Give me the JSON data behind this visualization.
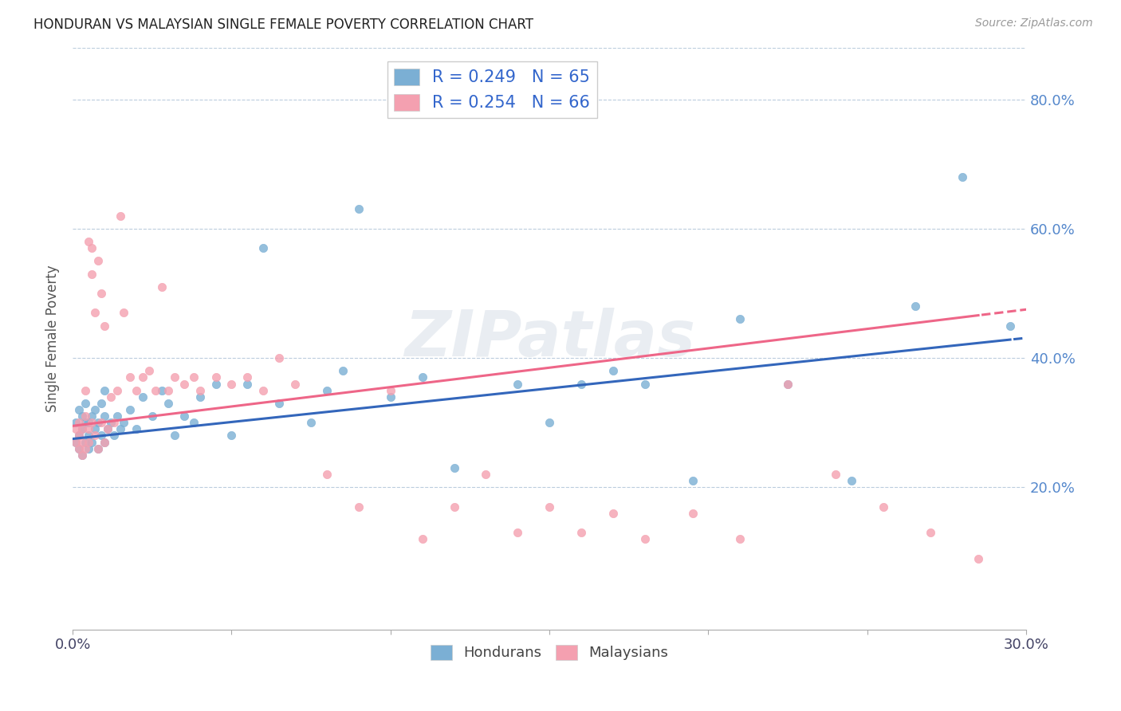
{
  "title": "HONDURAN VS MALAYSIAN SINGLE FEMALE POVERTY CORRELATION CHART",
  "source": "Source: ZipAtlas.com",
  "ylabel": "Single Female Poverty",
  "blue_color": "#7BAFD4",
  "pink_color": "#F4A0B0",
  "blue_line_color": "#3366BB",
  "pink_line_color": "#EE6688",
  "watermark": "ZIPatlas",
  "ytick_labels": [
    "20.0%",
    "40.0%",
    "60.0%",
    "80.0%"
  ],
  "ytick_values": [
    0.2,
    0.4,
    0.6,
    0.8
  ],
  "xlim": [
    0.0,
    0.3
  ],
  "ylim": [
    -0.02,
    0.88
  ],
  "blue_R": 0.249,
  "blue_N": 65,
  "pink_R": 0.254,
  "pink_N": 66,
  "blue_intercept": 0.275,
  "blue_slope": 0.52,
  "pink_intercept": 0.295,
  "pink_slope": 0.6,
  "blue_scatter_x": [
    0.001,
    0.001,
    0.002,
    0.002,
    0.002,
    0.003,
    0.003,
    0.003,
    0.004,
    0.004,
    0.004,
    0.005,
    0.005,
    0.005,
    0.006,
    0.006,
    0.007,
    0.007,
    0.008,
    0.008,
    0.009,
    0.009,
    0.01,
    0.01,
    0.01,
    0.011,
    0.012,
    0.013,
    0.014,
    0.015,
    0.016,
    0.018,
    0.02,
    0.022,
    0.025,
    0.028,
    0.03,
    0.032,
    0.035,
    0.038,
    0.04,
    0.045,
    0.05,
    0.055,
    0.06,
    0.065,
    0.075,
    0.08,
    0.085,
    0.09,
    0.1,
    0.11,
    0.12,
    0.14,
    0.15,
    0.16,
    0.17,
    0.18,
    0.195,
    0.21,
    0.225,
    0.245,
    0.265,
    0.28,
    0.295
  ],
  "blue_scatter_y": [
    0.27,
    0.3,
    0.26,
    0.28,
    0.32,
    0.25,
    0.29,
    0.31,
    0.27,
    0.3,
    0.33,
    0.26,
    0.28,
    0.3,
    0.27,
    0.31,
    0.29,
    0.32,
    0.26,
    0.3,
    0.28,
    0.33,
    0.27,
    0.31,
    0.35,
    0.29,
    0.3,
    0.28,
    0.31,
    0.29,
    0.3,
    0.32,
    0.29,
    0.34,
    0.31,
    0.35,
    0.33,
    0.28,
    0.31,
    0.3,
    0.34,
    0.36,
    0.28,
    0.36,
    0.57,
    0.33,
    0.3,
    0.35,
    0.38,
    0.63,
    0.34,
    0.37,
    0.23,
    0.36,
    0.3,
    0.36,
    0.38,
    0.36,
    0.21,
    0.46,
    0.36,
    0.21,
    0.48,
    0.68,
    0.45
  ],
  "pink_scatter_x": [
    0.001,
    0.001,
    0.002,
    0.002,
    0.002,
    0.003,
    0.003,
    0.003,
    0.004,
    0.004,
    0.004,
    0.005,
    0.005,
    0.005,
    0.006,
    0.006,
    0.006,
    0.007,
    0.007,
    0.008,
    0.008,
    0.009,
    0.009,
    0.01,
    0.01,
    0.011,
    0.012,
    0.013,
    0.014,
    0.015,
    0.016,
    0.018,
    0.02,
    0.022,
    0.024,
    0.026,
    0.028,
    0.03,
    0.032,
    0.035,
    0.038,
    0.04,
    0.045,
    0.05,
    0.055,
    0.06,
    0.065,
    0.07,
    0.08,
    0.09,
    0.1,
    0.11,
    0.12,
    0.13,
    0.14,
    0.15,
    0.16,
    0.17,
    0.18,
    0.195,
    0.21,
    0.225,
    0.24,
    0.255,
    0.27,
    0.285
  ],
  "pink_scatter_y": [
    0.27,
    0.29,
    0.26,
    0.28,
    0.3,
    0.25,
    0.27,
    0.29,
    0.26,
    0.31,
    0.35,
    0.27,
    0.29,
    0.58,
    0.3,
    0.53,
    0.57,
    0.28,
    0.47,
    0.26,
    0.55,
    0.3,
    0.5,
    0.27,
    0.45,
    0.29,
    0.34,
    0.3,
    0.35,
    0.62,
    0.47,
    0.37,
    0.35,
    0.37,
    0.38,
    0.35,
    0.51,
    0.35,
    0.37,
    0.36,
    0.37,
    0.35,
    0.37,
    0.36,
    0.37,
    0.35,
    0.4,
    0.36,
    0.22,
    0.17,
    0.35,
    0.12,
    0.17,
    0.22,
    0.13,
    0.17,
    0.13,
    0.16,
    0.12,
    0.16,
    0.12,
    0.36,
    0.22,
    0.17,
    0.13,
    0.09
  ]
}
